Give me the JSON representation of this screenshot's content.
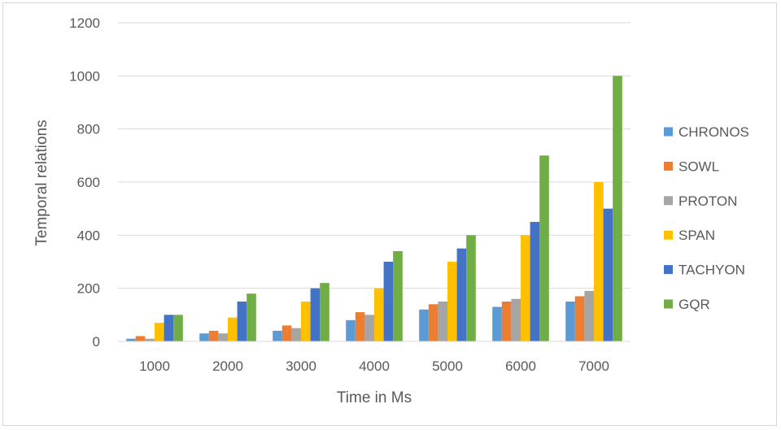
{
  "chart_data": {
    "type": "bar",
    "title": "",
    "xlabel": "Time in Ms",
    "ylabel": "Temporal relations",
    "categories": [
      "1000",
      "2000",
      "3000",
      "4000",
      "5000",
      "6000",
      "7000"
    ],
    "ylim": [
      0,
      1200
    ],
    "yticks": [
      0,
      200,
      400,
      600,
      800,
      1000,
      1200
    ],
    "grid": true,
    "legend_position": "right",
    "series": [
      {
        "name": "CHRONOS",
        "color": "#5b9bd5",
        "values": [
          10,
          30,
          40,
          80,
          120,
          130,
          150
        ]
      },
      {
        "name": "SOWL",
        "color": "#ed7d31",
        "values": [
          20,
          40,
          60,
          110,
          140,
          150,
          170
        ]
      },
      {
        "name": "PROTON",
        "color": "#a5a5a5",
        "values": [
          10,
          30,
          50,
          100,
          150,
          160,
          190
        ]
      },
      {
        "name": "SPAN",
        "color": "#ffc000",
        "values": [
          70,
          90,
          150,
          200,
          300,
          400,
          600
        ]
      },
      {
        "name": "TACHYON",
        "color": "#4472c4",
        "values": [
          100,
          150,
          200,
          300,
          350,
          450,
          500
        ]
      },
      {
        "name": "GQR",
        "color": "#70ad47",
        "values": [
          100,
          180,
          220,
          340,
          400,
          700,
          1000
        ]
      }
    ]
  }
}
